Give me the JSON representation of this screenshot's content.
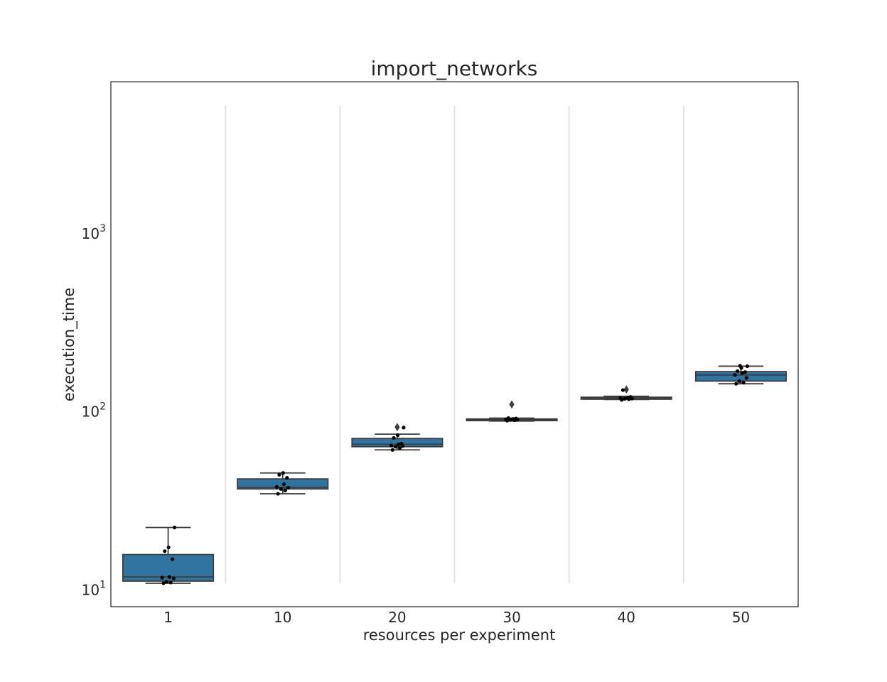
{
  "chart_data": {
    "type": "box",
    "title": "import_networks",
    "xlabel": "resources per experiment",
    "ylabel": "execution_time",
    "yscale": "log",
    "ylim": [
      7.9,
      7000
    ],
    "grid": "vertical separators between categories",
    "categories": [
      "1",
      "10",
      "20",
      "30",
      "40",
      "50"
    ],
    "y_ticks": [
      {
        "base": "10",
        "exp": "1",
        "value": 10
      },
      {
        "base": "10",
        "exp": "2",
        "value": 100
      },
      {
        "base": "10",
        "exp": "3",
        "value": 1000
      }
    ],
    "colors": {
      "box_fill": "#3274a1",
      "box_edge": "#3d3d3d",
      "point": "#000000",
      "separator": "#e3e3e3",
      "frame": "#262626"
    },
    "boxes": [
      {
        "category": "1",
        "whisker_low": 10.7,
        "q1": 11.0,
        "median": 11.6,
        "q3": 15.5,
        "whisker_high": 22.0,
        "outliers": [],
        "points": [
          10.7,
          10.8,
          10.9,
          11.4,
          11.5,
          11.6,
          14.6,
          16.2,
          17.0,
          22.0
        ]
      },
      {
        "category": "10",
        "whisker_low": 34.0,
        "q1": 36.2,
        "median": 37.0,
        "q3": 41.2,
        "whisker_high": 44.5,
        "outliers": [],
        "points": [
          34.0,
          35.5,
          36.2,
          36.8,
          37.2,
          38.5,
          41.8,
          43.5,
          44.5
        ]
      },
      {
        "category": "20",
        "whisker_low": 60.0,
        "q1": 62.5,
        "median": 64.5,
        "q3": 69.5,
        "whisker_high": 73.5,
        "outliers": [
          80.5
        ],
        "points": [
          60.0,
          61.5,
          62.5,
          63.0,
          63.5,
          64.5,
          65.0,
          70.0,
          72.5,
          80.0
        ]
      },
      {
        "category": "30",
        "whisker_low": 87.0,
        "q1": 87.5,
        "median": 88.5,
        "q3": 89.5,
        "whisker_high": 90.5,
        "outliers": [
          108
        ],
        "points": [
          87.5,
          88.0,
          88.5,
          88.5,
          89.0,
          89.5,
          90.0,
          90.5
        ]
      },
      {
        "category": "40",
        "whisker_low": 115,
        "q1": 115.5,
        "median": 116.5,
        "q3": 118.5,
        "whisker_high": 120,
        "outliers": [
          131
        ],
        "points": [
          114.5,
          115.5,
          116.0,
          116.5,
          117.5,
          118.0,
          119.0,
          130.0
        ]
      },
      {
        "category": "50",
        "whisker_low": 141,
        "q1": 146,
        "median": 158,
        "q3": 165,
        "whisker_high": 177,
        "outliers": [],
        "points": [
          141,
          143,
          146,
          152,
          158,
          162,
          164,
          166,
          173,
          177,
          178
        ]
      }
    ]
  }
}
